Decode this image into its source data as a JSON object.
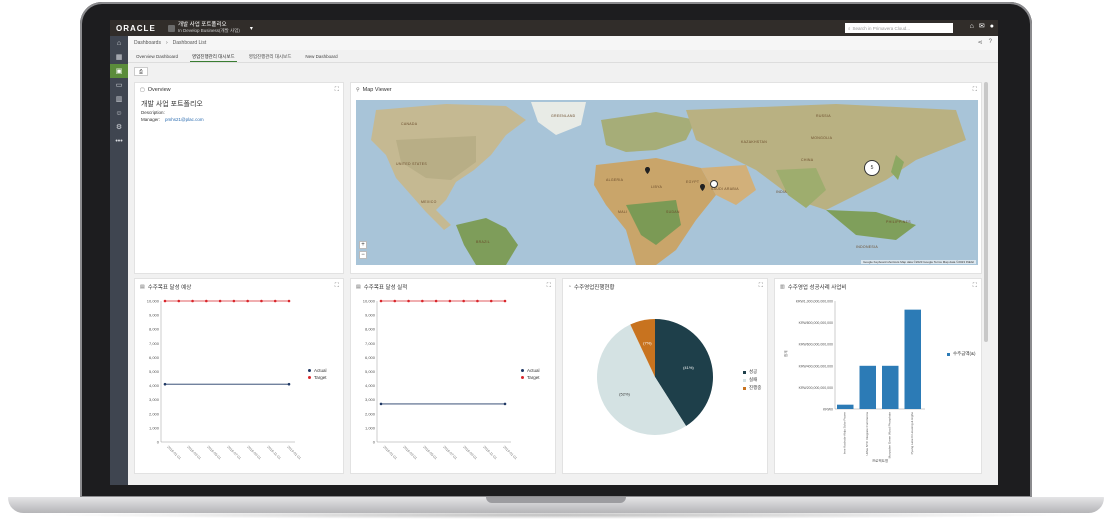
{
  "topbar": {
    "logo": "ORACLE",
    "project_name": "개발 사업 포트폴리오",
    "project_sub": "In Develop Business(개발 사업)",
    "search_placeholder": "Search in Primavera Cloud..."
  },
  "breadcrumb": {
    "root": "Dashboards",
    "current": "Dashboard List"
  },
  "tabs": [
    "Overview Dashboard",
    "영업진행관리 대시보드",
    "영업진행관리 대시보드",
    "New Dashboard"
  ],
  "active_tab": 1,
  "overview": {
    "title": "Overview",
    "name": "개발 사업 포트폴리오",
    "description_label": "Description:",
    "manager_label": "Manager:",
    "manager_value": "pmhs21@plac.com"
  },
  "map_viewer": {
    "title": "Map Viewer",
    "cluster_count": "5",
    "labels": [
      "CANADA",
      "UNITED STATES",
      "MEXICO",
      "VENEZUELA",
      "COLOMBIA",
      "PERU",
      "BRAZIL",
      "BOLIVIA",
      "CHILE",
      "ARGENTINA",
      "PARAGUAY",
      "GREENLAND",
      "SWEDEN",
      "FINLAND",
      "MONGOLIA",
      "CHINA",
      "KAZAKHSTAN",
      "RUSSIA",
      "IRAN",
      "ALGERIA",
      "LIBYA",
      "EGYPT",
      "MALI",
      "NIGER",
      "CHAD",
      "SUDAN",
      "NIGERIA",
      "ETHIOPIA",
      "KENYA",
      "TANZANIA",
      "ANGOLA",
      "NAMIBIA",
      "SOUTH AFRICA",
      "SAUDI ARABIA",
      "INDIA",
      "PAKISTAN",
      "AFGHANISTAN",
      "THAILAND",
      "MYANMAR (BURMA)",
      "MALAYSIA",
      "INDONESIA",
      "PAPUA NEW GUINEA",
      "MOROCCO",
      "PHILIPPINES",
      "DEMOCRATIC REPUBLIC OF THE CONGO",
      "REPUBLIC OF THE CONGO",
      "SOMALIA",
      "YEMEN",
      "OMAN",
      "TURKMENISTAN",
      "UZBEKISTAN",
      "TURKEY",
      "IRAQ",
      "UKRAINE",
      "POLAND",
      "GERMANY",
      "FRANCE",
      "SPAIN",
      "UNITED KINGDOM",
      "NORWAY",
      "ICELAND",
      "ALASKA",
      "CUBA",
      "ECUADOR",
      "ITALY",
      "SYRIA",
      "ARABIAN SEA"
    ],
    "credit": "Google  Keyboard shortcuts  Map data ©2023 Google  Terms  Map data ©2023 INEGI"
  },
  "chart1": {
    "title": "수주목표 달성 예상",
    "chart_data": {
      "type": "line",
      "x": [
        "2018-01",
        "2018-02",
        "2018-03",
        "2018-04",
        "2018-05",
        "2018-06",
        "2018-07",
        "2018-08",
        "2018-09",
        "2018-10"
      ],
      "ylim": [
        0,
        10000
      ],
      "yticks": [
        "0",
        "1,000",
        "2,000",
        "3,000",
        "4,000",
        "5,000",
        "6,000",
        "7,000",
        "8,000",
        "9,000",
        "10,000"
      ],
      "xticks": [
        "2018-01-01",
        "2018-03-01",
        "2018-05-01",
        "2018-07-01",
        "2018-09-01",
        "2018-11-01",
        "2019-01-01"
      ],
      "series": [
        {
          "name": "Actual",
          "color": "#1f3864",
          "values": [
            4100,
            null,
            null,
            null,
            null,
            null,
            null,
            null,
            null,
            4100
          ]
        },
        {
          "name": "Target",
          "color": "#d9262b",
          "values": [
            10000,
            10000,
            10000,
            10000,
            10000,
            10000,
            10000,
            10000,
            10000,
            10000
          ]
        }
      ]
    }
  },
  "chart2": {
    "title": "수주목표 달성 실적",
    "chart_data": {
      "type": "line",
      "x": [
        "2018-01",
        "2018-02",
        "2018-03",
        "2018-04",
        "2018-05",
        "2018-06",
        "2018-07",
        "2018-08",
        "2018-09",
        "2018-10"
      ],
      "ylim": [
        0,
        10000
      ],
      "yticks": [
        "0",
        "1,000",
        "2,000",
        "3,000",
        "4,000",
        "5,000",
        "6,000",
        "7,000",
        "8,000",
        "9,000",
        "10,000"
      ],
      "xticks": [
        "2018-01-01",
        "2018-03-01",
        "2018-05-01",
        "2018-07-01",
        "2018-09-01",
        "2018-11-01",
        "2019-01-01"
      ],
      "series": [
        {
          "name": "Actual",
          "color": "#1f3864",
          "values": [
            2700,
            null,
            null,
            null,
            null,
            null,
            null,
            null,
            null,
            2700
          ]
        },
        {
          "name": "Target",
          "color": "#d9262b",
          "values": [
            10000,
            10000,
            10000,
            10000,
            10000,
            10000,
            10000,
            10000,
            10000,
            10000
          ]
        }
      ]
    }
  },
  "chart3": {
    "title": "수주영업진행현황",
    "chart_data": {
      "type": "pie",
      "slices": [
        {
          "name": "성공",
          "value": 41,
          "label": "(41%)",
          "color": "#1e3f4a"
        },
        {
          "name": "실패",
          "value": 52,
          "label": "(52%)",
          "color": "#d4e2e3"
        },
        {
          "name": "진행중",
          "value": 7,
          "label": "(7%)",
          "color": "#c8731f"
        }
      ]
    }
  },
  "chart4": {
    "title": "수주영업 성공사례 사업비",
    "chart_data": {
      "type": "bar",
      "ylabel": "합계",
      "ylim": [
        0,
        1000000000000
      ],
      "yticks": [
        "KRW0",
        "KRW200,000,000,000",
        "KRW400,000,000,000",
        "KRW600,000,000,000",
        "KRW800,000,000,000",
        "KRW1,000,000,000,000"
      ],
      "categories": [
        "Inve Kachala-Abija Solar Power Plant Project (수변 지방 분)",
        "Ulifax NYC Integrate Commercial Building Constructi...",
        "Maryaden Green Wood Phosphate Project",
        "Pyang Lake IIi Housing & Higher Construction Proje..."
      ],
      "xgroup": "프로젝트명",
      "series": [
        {
          "name": "수주금액(&)",
          "color": "#2c7bb6",
          "values": [
            40000000000,
            400000000000,
            400000000000,
            920000000000
          ]
        }
      ]
    }
  }
}
